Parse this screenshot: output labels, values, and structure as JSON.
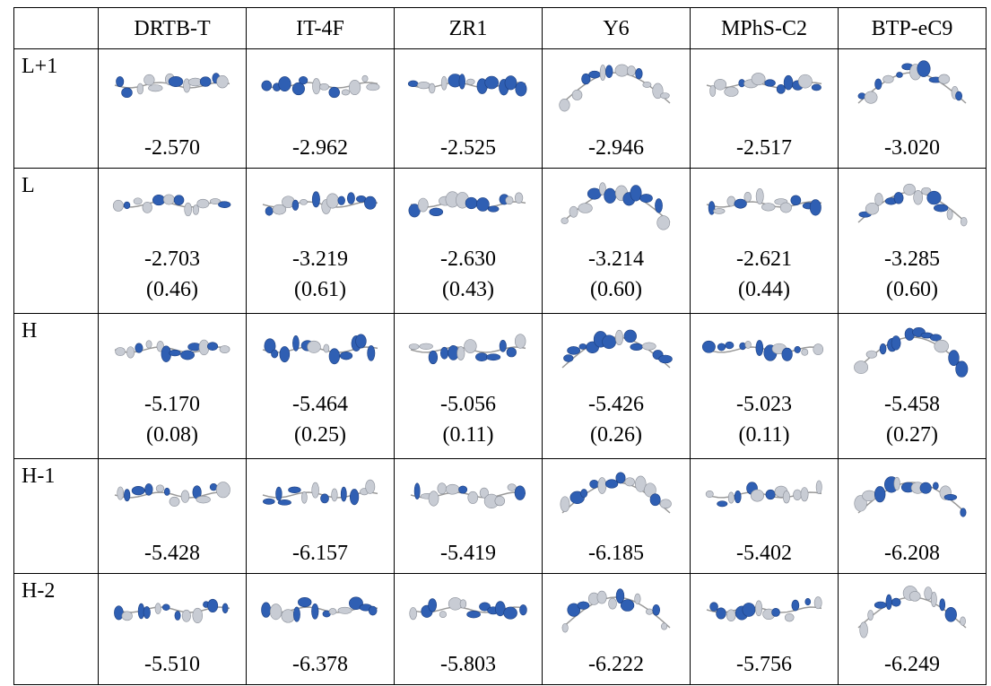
{
  "table": {
    "columns": [
      "DRTB-T",
      "IT-4F",
      "ZR1",
      "Y6",
      "MPhS-C2",
      "BTP-eC9"
    ],
    "rows": [
      {
        "label": "L+1",
        "energies": [
          "-2.570",
          "-2.962",
          "-2.525",
          "-2.946",
          "-2.517",
          "-3.020"
        ]
      },
      {
        "label": "L",
        "energies": [
          "-2.703",
          "-3.219",
          "-2.630",
          "-3.214",
          "-2.621",
          "-3.285"
        ],
        "weights": [
          "(0.46)",
          "(0.61)",
          "(0.43)",
          "(0.60)",
          "(0.44)",
          "(0.60)"
        ]
      },
      {
        "label": "H",
        "energies": [
          "-5.170",
          "-5.464",
          "-5.056",
          "-5.426",
          "-5.023",
          "-5.458"
        ],
        "weights": [
          "(0.08)",
          "(0.25)",
          "(0.11)",
          "(0.26)",
          "(0.11)",
          "(0.27)"
        ]
      },
      {
        "label": "H-1",
        "energies": [
          "-5.428",
          "-6.157",
          "-5.419",
          "-6.185",
          "-5.402",
          "-6.208"
        ]
      },
      {
        "label": "H-2",
        "energies": [
          "-5.510",
          "-6.378",
          "-5.803",
          "-6.222",
          "-5.756",
          "-6.249"
        ]
      }
    ]
  }
}
